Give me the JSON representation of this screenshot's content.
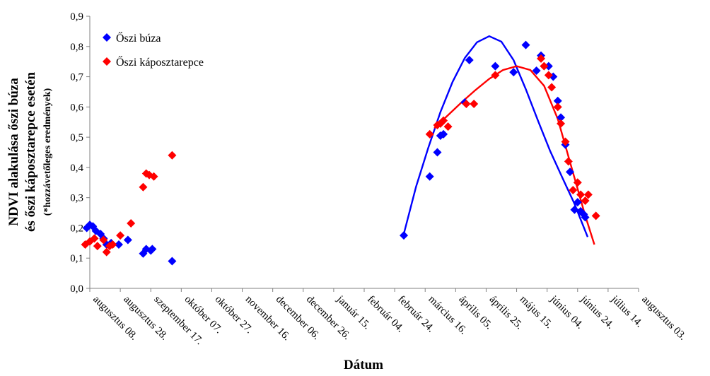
{
  "chart_data": {
    "type": "scatter",
    "xlabel": "Dátum",
    "ylabel": "NDVI alakulása őszi búza",
    "ylabel_line2": "és őszi káposztarepce esetén",
    "ylabel_note": "(*hozzávetőleges eredmények)",
    "x_ticks": [
      "augusztus 08.",
      "augusztus 28.",
      "szeptember 17.",
      "október 07.",
      "október 27.",
      "november 16.",
      "december 06.",
      "december 26.",
      "január 15.",
      "február 04.",
      "február 24.",
      "március 16.",
      "április 05.",
      "április 25.",
      "május 15.",
      "június 04.",
      "június 24.",
      "július 14.",
      "augusztus 03."
    ],
    "y_ticks": [
      "0,0",
      "0,1",
      "0,2",
      "0,3",
      "0,4",
      "0,5",
      "0,6",
      "0,7",
      "0,8",
      "0,9"
    ],
    "xlim": [
      "augusztus 08.",
      "augusztus 03."
    ],
    "ylim": [
      0,
      0.9
    ],
    "grid": false,
    "legend_position": "top-left",
    "series": [
      {
        "name": "Őszi búza",
        "color": "#0000ff",
        "marker": "diamond",
        "points": [
          [
            -2,
            0.2
          ],
          [
            0,
            0.21
          ],
          [
            2,
            0.205
          ],
          [
            4,
            0.19
          ],
          [
            7,
            0.18
          ],
          [
            9,
            0.165
          ],
          [
            11,
            0.145
          ],
          [
            14,
            0.15
          ],
          [
            19,
            0.145
          ],
          [
            25,
            0.16
          ],
          [
            35,
            0.115
          ],
          [
            37,
            0.13
          ],
          [
            40,
            0.125
          ],
          [
            41,
            0.13
          ],
          [
            54,
            0.09
          ],
          [
            206,
            0.175
          ],
          [
            223,
            0.37
          ],
          [
            228,
            0.45
          ],
          [
            230,
            0.505
          ],
          [
            232,
            0.51
          ],
          [
            246,
            0.615
          ],
          [
            249,
            0.755
          ],
          [
            266,
            0.735
          ],
          [
            278,
            0.715
          ],
          [
            286,
            0.805
          ],
          [
            293,
            0.72
          ],
          [
            296,
            0.77
          ],
          [
            301,
            0.735
          ],
          [
            304,
            0.7
          ],
          [
            307,
            0.62
          ],
          [
            309,
            0.565
          ],
          [
            312,
            0.475
          ],
          [
            315,
            0.385
          ],
          [
            318,
            0.26
          ],
          [
            320,
            0.285
          ],
          [
            322,
            0.255
          ],
          [
            324,
            0.245
          ],
          [
            325,
            0.235
          ]
        ],
        "trend_x": [
          206,
          214,
          222,
          230,
          238,
          246,
          254,
          262,
          270,
          278,
          286,
          294,
          302,
          310,
          318,
          322,
          326.6
        ],
        "trend_y": [
          0.18,
          0.336,
          0.464,
          0.583,
          0.683,
          0.762,
          0.814,
          0.834,
          0.816,
          0.755,
          0.659,
          0.555,
          0.454,
          0.366,
          0.279,
          0.228,
          0.17
        ]
      },
      {
        "name": "Őszi káposztarepce",
        "color": "#ff0000",
        "marker": "diamond",
        "points": [
          [
            -3,
            0.145
          ],
          [
            0,
            0.155
          ],
          [
            3,
            0.165
          ],
          [
            5,
            0.14
          ],
          [
            9,
            0.16
          ],
          [
            11,
            0.12
          ],
          [
            13,
            0.14
          ],
          [
            15,
            0.145
          ],
          [
            20,
            0.175
          ],
          [
            27,
            0.215
          ],
          [
            35,
            0.335
          ],
          [
            37,
            0.38
          ],
          [
            39,
            0.375
          ],
          [
            42,
            0.37
          ],
          [
            54,
            0.44
          ],
          [
            223,
            0.51
          ],
          [
            228,
            0.54
          ],
          [
            230,
            0.545
          ],
          [
            232,
            0.555
          ],
          [
            235,
            0.535
          ],
          [
            247,
            0.61
          ],
          [
            252,
            0.61
          ],
          [
            266,
            0.705
          ],
          [
            296,
            0.76
          ],
          [
            298,
            0.735
          ],
          [
            301,
            0.705
          ],
          [
            303,
            0.665
          ],
          [
            307,
            0.6
          ],
          [
            309,
            0.545
          ],
          [
            312,
            0.485
          ],
          [
            314,
            0.42
          ],
          [
            317,
            0.325
          ],
          [
            320,
            0.35
          ],
          [
            322,
            0.31
          ],
          [
            325,
            0.29
          ],
          [
            327,
            0.31
          ],
          [
            332,
            0.24
          ]
        ],
        "trend_x": [
          226,
          235,
          244,
          253,
          262,
          271,
          280,
          289,
          298,
          307,
          316,
          325,
          331
        ],
        "trend_y": [
          0.53,
          0.573,
          0.616,
          0.656,
          0.693,
          0.722,
          0.735,
          0.722,
          0.67,
          0.56,
          0.4,
          0.24,
          0.145
        ]
      }
    ]
  }
}
